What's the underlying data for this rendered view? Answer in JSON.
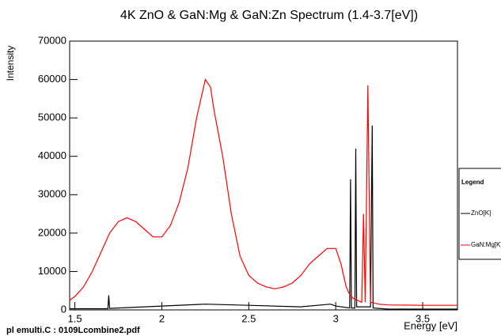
{
  "chart_data": {
    "type": "line",
    "title": "4K ZnO & GaN:Mg & GaN:Zn Spectrum (1.4-3.7[eV])",
    "x_label": "Energy [eV]",
    "y_label": "Intensity",
    "footer": "pl  emulti.C : 0109Lcombine2.pdf",
    "legend_title": "Legend",
    "xlim": [
      1.47,
      3.7
    ],
    "xticks": [
      1.5,
      2,
      2.5,
      3,
      3.5
    ],
    "ylim": [
      0,
      70000
    ],
    "yticks": [
      0,
      10000,
      20000,
      30000,
      40000,
      50000,
      60000,
      70000
    ],
    "series": [
      {
        "name": "ZnO[K]",
        "color": "#000000",
        "x": [
          1.47,
          1.69,
          1.695,
          1.7,
          2.0,
          2.25,
          2.5,
          2.8,
          2.97,
          3.0,
          3.08,
          3.085,
          3.09,
          3.11,
          3.115,
          3.12,
          3.2,
          3.21,
          3.215,
          3.3,
          3.7
        ],
        "values": [
          300,
          300,
          3800,
          400,
          1000,
          1500,
          1200,
          800,
          1500,
          1000,
          500,
          34000,
          500,
          500,
          42000,
          800,
          800,
          48000,
          500,
          200,
          200
        ]
      },
      {
        "name": "GaN:Mg[K]",
        "color": "#ff0000",
        "x": [
          1.47,
          1.5,
          1.55,
          1.6,
          1.65,
          1.7,
          1.75,
          1.8,
          1.85,
          1.9,
          1.95,
          2.0,
          2.05,
          2.1,
          2.15,
          2.2,
          2.25,
          2.28,
          2.3,
          2.35,
          2.4,
          2.45,
          2.5,
          2.55,
          2.6,
          2.65,
          2.7,
          2.75,
          2.8,
          2.85,
          2.9,
          2.95,
          3.0,
          3.03,
          3.06,
          3.08,
          3.1,
          3.15,
          3.16,
          3.17,
          3.185,
          3.2,
          3.25,
          3.3,
          3.5,
          3.7
        ],
        "values": [
          2500,
          3500,
          6000,
          10000,
          15000,
          20000,
          23000,
          24000,
          23000,
          21000,
          19000,
          19000,
          22000,
          28000,
          37000,
          50000,
          60000,
          58000,
          52000,
          40000,
          25000,
          14000,
          9000,
          7000,
          6000,
          5500,
          6000,
          7000,
          9000,
          12000,
          14000,
          16000,
          16000,
          12000,
          6000,
          4000,
          3000,
          2000,
          25000,
          2000,
          58500,
          2000,
          1500,
          1300,
          1200,
          1200
        ]
      }
    ]
  }
}
